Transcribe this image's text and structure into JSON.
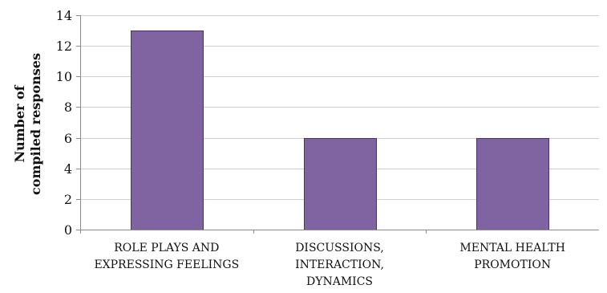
{
  "chart_data": {
    "type": "bar",
    "categories": [
      [
        "ROLE PLAYS AND",
        "EXPRESSING FEELINGS"
      ],
      [
        "DISCUSSIONS,",
        "INTERACTION,",
        "DYNAMICS"
      ],
      [
        "MENTAL HEALTH",
        "PROMOTION"
      ]
    ],
    "values": [
      13,
      6,
      6
    ],
    "title": "",
    "xlabel": "",
    "ylabel": [
      "Number of",
      "compiled responses"
    ],
    "ylim": [
      0,
      14
    ],
    "yticks": [
      0,
      2,
      4,
      6,
      8,
      10,
      12,
      14
    ],
    "grid": true,
    "legend": "none",
    "colors": {
      "bar_fill": "#8064a2",
      "bar_edge": "#4a2f6a",
      "grid": "#d0d0d0",
      "axis": "#8a8a8a",
      "text": "#111111"
    }
  }
}
